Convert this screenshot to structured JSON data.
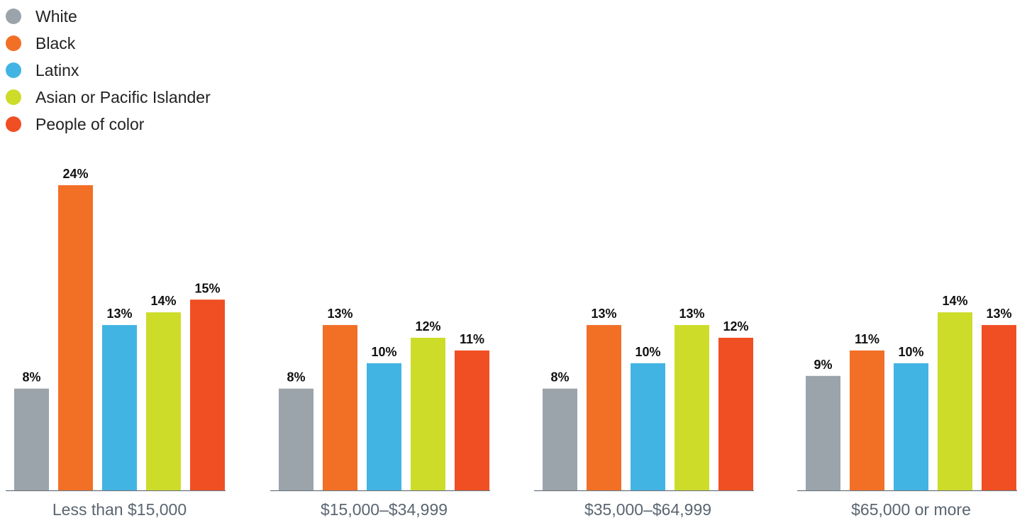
{
  "chart_data": {
    "type": "bar",
    "title": "",
    "xlabel": "",
    "ylabel": "",
    "categories": [
      "Less than $15,000",
      "$15,000–$34,999",
      "$35,000–$64,999",
      "$65,000 or more"
    ],
    "series": [
      {
        "name": "White",
        "color": "#9ba3ab",
        "values": [
          8,
          8,
          8,
          9
        ],
        "labels": [
          "8%",
          "8%",
          "8%",
          "9%"
        ]
      },
      {
        "name": "Black",
        "color": "#f26f26",
        "values": [
          24,
          13,
          13,
          11
        ],
        "labels": [
          "24%",
          "13%",
          "13%",
          "11%"
        ]
      },
      {
        "name": "Latinx",
        "color": "#42b4e4",
        "values": [
          13,
          10,
          10,
          10
        ],
        "labels": [
          "13%",
          "10%",
          "10%",
          "10%"
        ]
      },
      {
        "name": "Asian or Pacific Islander",
        "color": "#cddc29",
        "values": [
          14,
          12,
          13,
          14
        ],
        "labels": [
          "14%",
          "12%",
          "13%",
          "14%"
        ]
      },
      {
        "name": "People of color",
        "color": "#f04e23",
        "values": [
          15,
          11,
          12,
          13
        ],
        "labels": [
          "15%",
          "11%",
          "12%",
          "13%"
        ]
      }
    ],
    "ylim": [
      0,
      24
    ],
    "grid": false,
    "legend_position": "top-left",
    "axis_color": "#6b737b"
  }
}
